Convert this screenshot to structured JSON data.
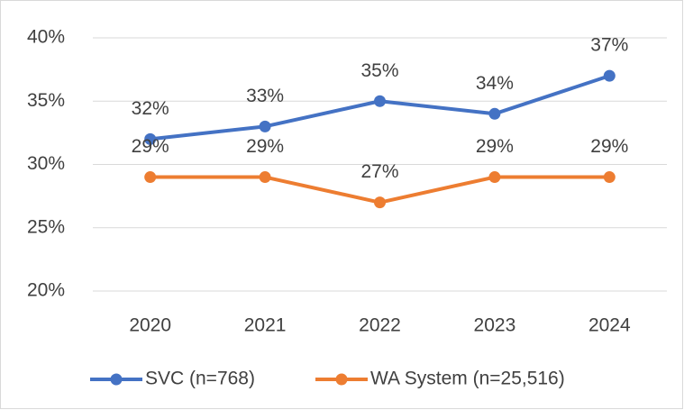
{
  "chart_data": {
    "type": "line",
    "categories": [
      "2020",
      "2021",
      "2022",
      "2023",
      "2024"
    ],
    "series": [
      {
        "name": "SVC (n=768)",
        "color": "#4472c4",
        "values": [
          32,
          33,
          35,
          34,
          37
        ],
        "value_labels": [
          "32%",
          "33%",
          "35%",
          "34%",
          "37%"
        ]
      },
      {
        "name": "WA System (n=25,516)",
        "color": "#ed7d31",
        "values": [
          29,
          29,
          27,
          29,
          29
        ],
        "value_labels": [
          "29%",
          "29%",
          "27%",
          "29%",
          "29%"
        ]
      }
    ],
    "ylim": [
      20,
      40
    ],
    "yticks": [
      {
        "value": 20,
        "label": "20%"
      },
      {
        "value": 25,
        "label": "25%"
      },
      {
        "value": 30,
        "label": "30%"
      },
      {
        "value": 35,
        "label": "35%"
      },
      {
        "value": 40,
        "label": "40%"
      }
    ],
    "grid": true,
    "legend": "bottom"
  }
}
